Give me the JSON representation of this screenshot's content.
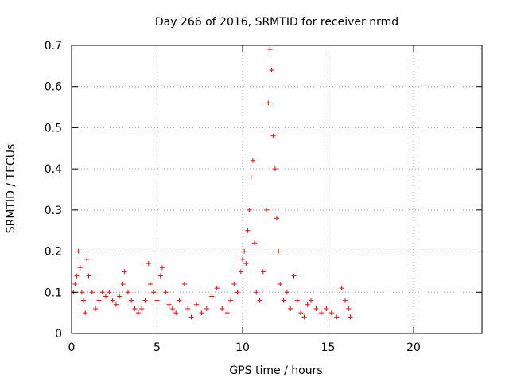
{
  "chart_data": {
    "type": "scatter",
    "title": "Day 266 of 2016, SRMTID for receiver nrmd",
    "xlabel": "GPS time / hours",
    "ylabel": "SRMTID / TECUs",
    "xlim": [
      0,
      24
    ],
    "ylim": [
      0,
      0.7
    ],
    "xticks": [
      0,
      5,
      10,
      15,
      20
    ],
    "yticks": [
      0,
      0.1,
      0.2,
      0.3,
      0.4,
      0.5,
      0.6,
      0.7
    ],
    "xtick_labels": [
      "0",
      "5",
      "10",
      "15",
      "20"
    ],
    "ytick_labels": [
      "0",
      "0.1",
      "0.2",
      "0.3",
      "0.4",
      "0.5",
      "0.6",
      "0.7"
    ],
    "grid": true,
    "marker": "+",
    "color": "#ff0000",
    "series": [
      {
        "name": "SRMTID",
        "points": [
          [
            0.1,
            0.1
          ],
          [
            0.2,
            0.12
          ],
          [
            0.3,
            0.14
          ],
          [
            0.4,
            0.2
          ],
          [
            0.5,
            0.16
          ],
          [
            0.6,
            0.1
          ],
          [
            0.7,
            0.08
          ],
          [
            0.8,
            0.05
          ],
          [
            0.9,
            0.18
          ],
          [
            1.0,
            0.14
          ],
          [
            1.2,
            0.1
          ],
          [
            1.4,
            0.06
          ],
          [
            1.6,
            0.08
          ],
          [
            1.8,
            0.1
          ],
          [
            2.0,
            0.09
          ],
          [
            2.2,
            0.1
          ],
          [
            2.4,
            0.08
          ],
          [
            2.6,
            0.07
          ],
          [
            2.8,
            0.09
          ],
          [
            3.0,
            0.12
          ],
          [
            3.1,
            0.15
          ],
          [
            3.3,
            0.1
          ],
          [
            3.5,
            0.08
          ],
          [
            3.7,
            0.06
          ],
          [
            3.9,
            0.05
          ],
          [
            4.1,
            0.06
          ],
          [
            4.3,
            0.08
          ],
          [
            4.5,
            0.17
          ],
          [
            4.6,
            0.12
          ],
          [
            4.8,
            0.1
          ],
          [
            5.0,
            0.08
          ],
          [
            5.2,
            0.14
          ],
          [
            5.3,
            0.16
          ],
          [
            5.5,
            0.1
          ],
          [
            5.7,
            0.07
          ],
          [
            5.9,
            0.06
          ],
          [
            6.1,
            0.05
          ],
          [
            6.3,
            0.08
          ],
          [
            6.6,
            0.12
          ],
          [
            6.8,
            0.06
          ],
          [
            7.0,
            0.04
          ],
          [
            7.3,
            0.07
          ],
          [
            7.6,
            0.05
          ],
          [
            7.9,
            0.06
          ],
          [
            8.2,
            0.09
          ],
          [
            8.5,
            0.11
          ],
          [
            8.8,
            0.06
          ],
          [
            9.1,
            0.05
          ],
          [
            9.3,
            0.08
          ],
          [
            9.5,
            0.12
          ],
          [
            9.7,
            0.1
          ],
          [
            9.9,
            0.15
          ],
          [
            10.0,
            0.18
          ],
          [
            10.1,
            0.2
          ],
          [
            10.2,
            0.17
          ],
          [
            10.3,
            0.25
          ],
          [
            10.4,
            0.3
          ],
          [
            10.5,
            0.38
          ],
          [
            10.6,
            0.42
          ],
          [
            10.7,
            0.22
          ],
          [
            10.8,
            0.1
          ],
          [
            11.0,
            0.08
          ],
          [
            11.2,
            0.15
          ],
          [
            11.4,
            0.3
          ],
          [
            11.5,
            0.56
          ],
          [
            11.6,
            0.69
          ],
          [
            11.7,
            0.64
          ],
          [
            11.8,
            0.48
          ],
          [
            11.9,
            0.4
          ],
          [
            12.0,
            0.28
          ],
          [
            12.1,
            0.2
          ],
          [
            12.2,
            0.12
          ],
          [
            12.4,
            0.08
          ],
          [
            12.6,
            0.1
          ],
          [
            12.8,
            0.06
          ],
          [
            13.0,
            0.14
          ],
          [
            13.2,
            0.08
          ],
          [
            13.4,
            0.05
          ],
          [
            13.6,
            0.04
          ],
          [
            13.8,
            0.07
          ],
          [
            14.0,
            0.08
          ],
          [
            14.3,
            0.06
          ],
          [
            14.6,
            0.05
          ],
          [
            14.9,
            0.06
          ],
          [
            15.2,
            0.05
          ],
          [
            15.5,
            0.04
          ],
          [
            15.8,
            0.11
          ],
          [
            16.0,
            0.08
          ],
          [
            16.2,
            0.06
          ],
          [
            16.3,
            0.04
          ]
        ]
      }
    ]
  }
}
